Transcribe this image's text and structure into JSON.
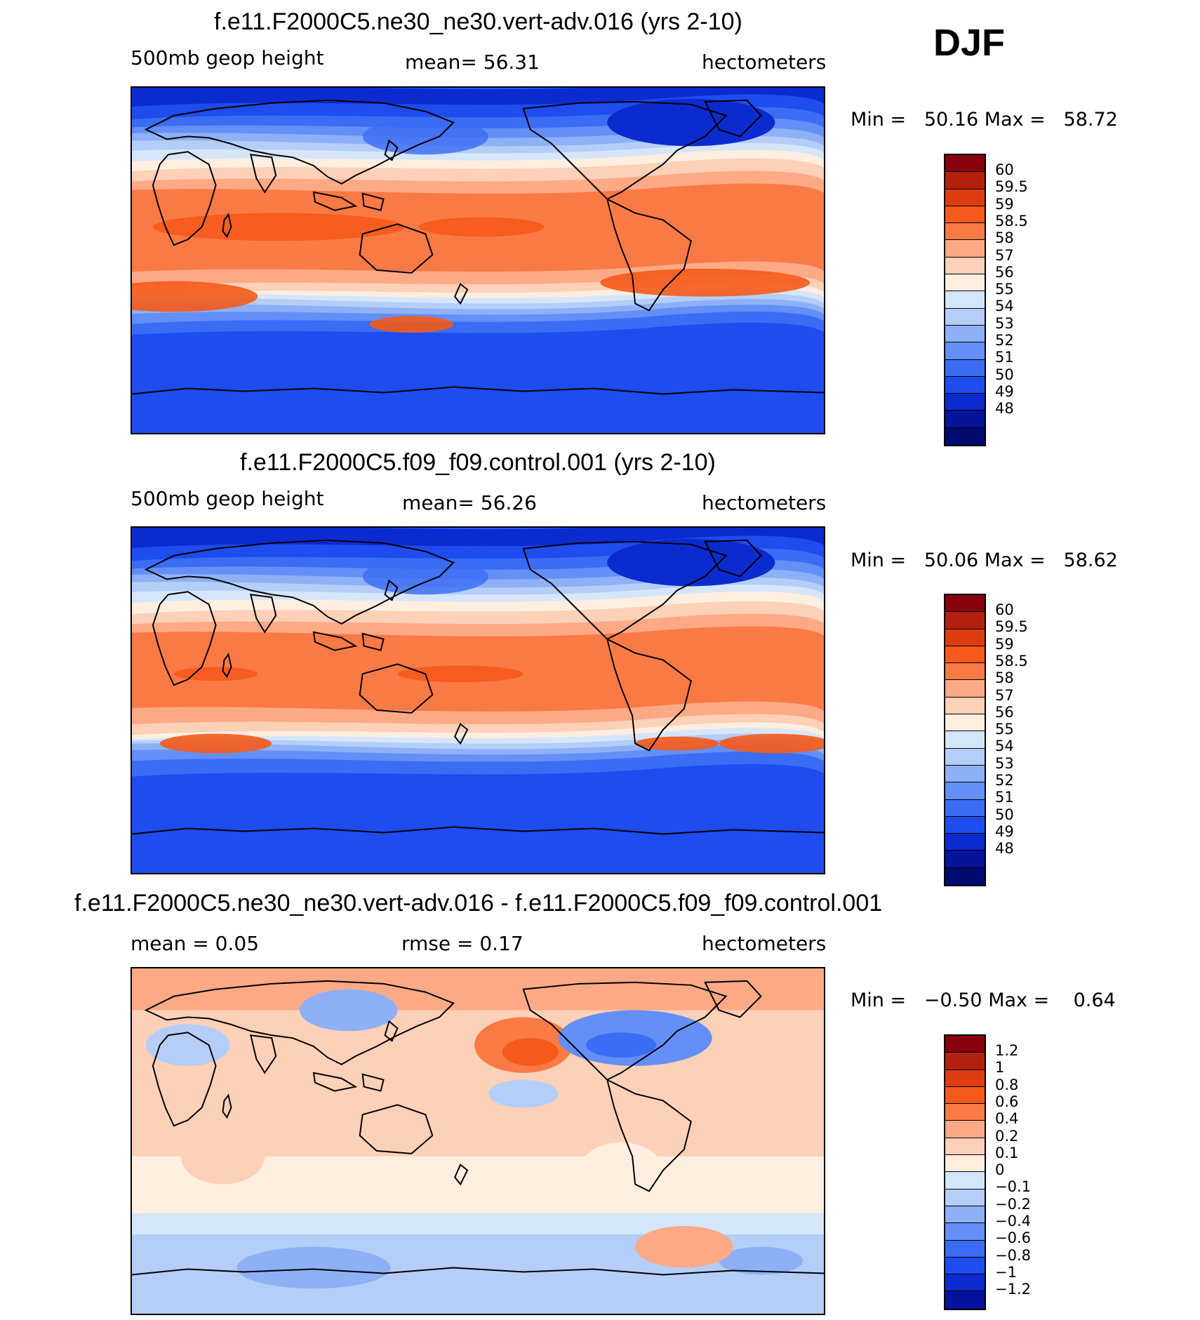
{
  "season": "DJF",
  "palette_abs": [
    "#88000e",
    "#b3200e",
    "#dd3d10",
    "#f55a1a",
    "#fa7a45",
    "#fcaa86",
    "#fdd0b8",
    "#fdeee0",
    "#d6e6fa",
    "#b4cef8",
    "#8db0f7",
    "#638ff6",
    "#3b6cf4",
    "#1e4cee",
    "#0b2bcf",
    "#04129c",
    "#000b70"
  ],
  "palette_diff": [
    "#88000e",
    "#b3200e",
    "#dd3d10",
    "#f55a1a",
    "#fa7a45",
    "#fcaa86",
    "#fdd0b8",
    "#fdeee0",
    "#d6e6fa",
    "#b4cef8",
    "#8db0f7",
    "#638ff6",
    "#3b6cf4",
    "#1e4cee",
    "#0b2bcf",
    "#04129c"
  ],
  "panels": [
    {
      "title": "f.e11.F2000C5.ne30_ne30.vert-adv.016 (yrs 2-10)",
      "left_label": "500mb geop height",
      "mid_label": "mean=   56.31",
      "units": "hectometers",
      "min_label": "Min =",
      "min_value": "50.16",
      "max_label": "Max =",
      "max_value": "58.72",
      "levels": [
        "60",
        "59.5",
        "59",
        "58.5",
        "58",
        "57",
        "56",
        "55",
        "54",
        "53",
        "52",
        "51",
        "50",
        "49",
        "48"
      ]
    },
    {
      "title": "f.e11.F2000C5.f09_f09.control.001 (yrs 2-10)",
      "left_label": "500mb geop height",
      "mid_label": "mean=   56.26",
      "units": "hectometers",
      "min_label": "Min =",
      "min_value": "50.06",
      "max_label": "Max =",
      "max_value": "58.62",
      "levels": [
        "60",
        "59.5",
        "59",
        "58.5",
        "58",
        "57",
        "56",
        "55",
        "54",
        "53",
        "52",
        "51",
        "50",
        "49",
        "48"
      ]
    },
    {
      "title": "f.e11.F2000C5.ne30_ne30.vert-adv.016 - f.e11.F2000C5.f09_f09.control.001",
      "left_label": "mean =    0.05",
      "mid_label": "rmse =    0.17",
      "units": "hectometers",
      "min_label": "Min =",
      "min_value": "−0.50",
      "max_label": "Max =",
      "max_value": "0.64",
      "levels": [
        "1.2",
        "1",
        "0.8",
        "0.6",
        "0.4",
        "0.2",
        "0.1",
        "0",
        "−0.1",
        "−0.2",
        "−0.4",
        "−0.6",
        "−0.8",
        "−1",
        "−1.2"
      ]
    }
  ]
}
